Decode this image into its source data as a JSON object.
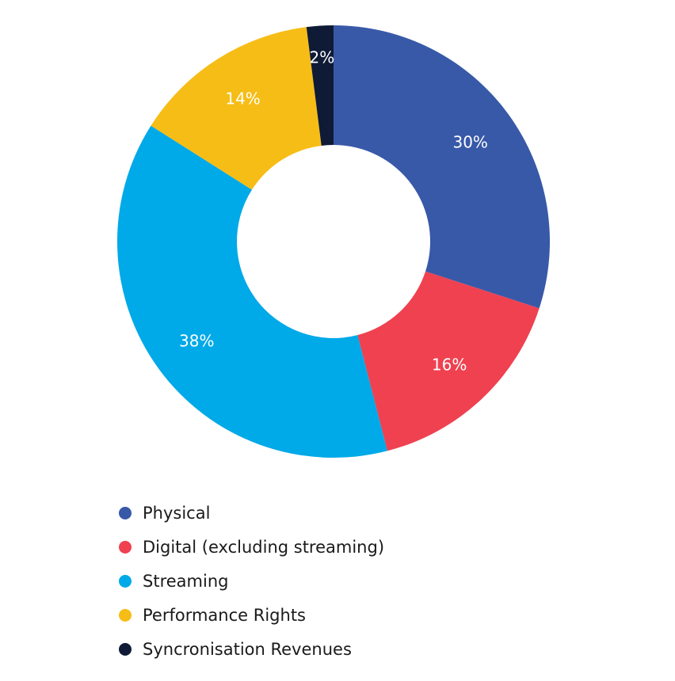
{
  "chart_data": {
    "type": "pie",
    "donut": true,
    "title": "",
    "series": [
      {
        "name": "Physical",
        "value": 30,
        "label": "30%",
        "color": "#3859a8"
      },
      {
        "name": "Digital (excluding streaming)",
        "value": 16,
        "label": "16%",
        "color": "#ef4150"
      },
      {
        "name": "Streaming",
        "value": 38,
        "label": "38%",
        "color": "#00a9e8"
      },
      {
        "name": "Performance Rights",
        "value": 14,
        "label": "14%",
        "color": "#f6bd16"
      },
      {
        "name": "Syncronisation Revenues",
        "value": 2,
        "label": "2%",
        "color": "#0f1a36"
      }
    ],
    "legend": {
      "position": "bottom-left"
    }
  }
}
